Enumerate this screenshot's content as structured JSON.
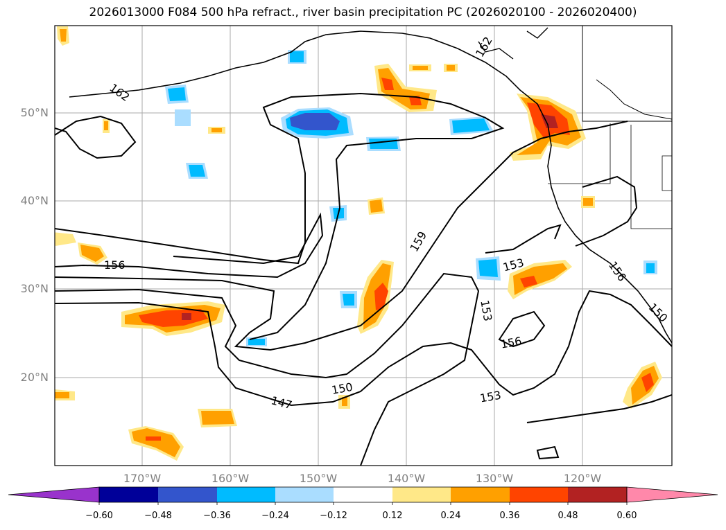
{
  "title": "2026013000 F084 500 hPa refract., river basin precipitation PC (2026020100 - 2026020400)",
  "lat_labels": [
    "50°N",
    "40°N",
    "30°N",
    "20°N"
  ],
  "lon_labels": [
    "170°W",
    "160°W",
    "150°W",
    "140°W",
    "130°W",
    "120°W"
  ],
  "contour_labels": [
    "162",
    "162",
    "156",
    "159",
    "153",
    "153",
    "156",
    "150",
    "147",
    "153",
    "156",
    "150"
  ],
  "colorbar": {
    "ticks": [
      "−0.60",
      "−0.48",
      "−0.36",
      "−0.24",
      "−0.12",
      "0.12",
      "0.24",
      "0.36",
      "0.48",
      "0.60"
    ],
    "colors": [
      "#9933cc",
      "#000099",
      "#3355cc",
      "#00bbff",
      "#aaddff",
      "#ffffff",
      "#ffe888",
      "#ffa000",
      "#ff4400",
      "#b22222",
      "#ff88aa"
    ]
  },
  "colors": {
    "ocean_bg": "#ffffff",
    "grid": "#aaaaaa",
    "axis_label": "#808080",
    "contour": "#000000"
  }
}
